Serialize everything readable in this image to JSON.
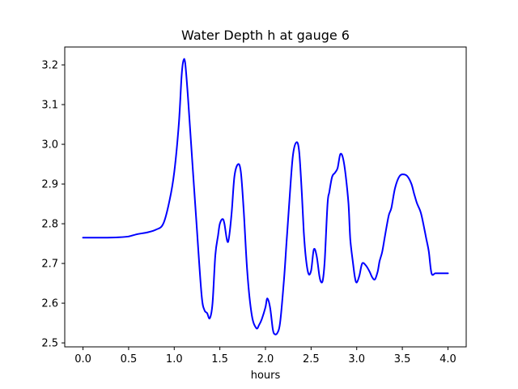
{
  "chart_data": {
    "type": "line",
    "title": "Water Depth h at gauge 6",
    "xlabel": "hours",
    "ylabel": "",
    "xlim": [
      -0.2,
      4.2
    ],
    "ylim": [
      2.49,
      3.245
    ],
    "xticks": [
      0.0,
      0.5,
      1.0,
      1.5,
      2.0,
      2.5,
      3.0,
      3.5,
      4.0
    ],
    "xtick_labels": [
      "0.0",
      "0.5",
      "1.0",
      "1.5",
      "2.0",
      "2.5",
      "3.0",
      "3.5",
      "4.0"
    ],
    "yticks": [
      2.5,
      2.6,
      2.7,
      2.8,
      2.9,
      3.0,
      3.1,
      3.2
    ],
    "ytick_labels": [
      "2.5",
      "2.6",
      "2.7",
      "2.8",
      "2.9",
      "3.0",
      "3.1",
      "3.2"
    ],
    "grid": false,
    "series": [
      {
        "color": "#0000ff",
        "x": [
          0.0,
          0.2,
          0.4,
          0.5,
          0.6,
          0.7,
          0.8,
          0.88,
          0.95,
          1.0,
          1.05,
          1.08,
          1.1,
          1.12,
          1.15,
          1.2,
          1.25,
          1.3,
          1.33,
          1.36,
          1.39,
          1.42,
          1.45,
          1.48,
          1.5,
          1.53,
          1.55,
          1.58,
          1.6,
          1.63,
          1.66,
          1.7,
          1.73,
          1.76,
          1.8,
          1.85,
          1.9,
          1.93,
          1.96,
          2.0,
          2.02,
          2.05,
          2.08,
          2.1,
          2.13,
          2.16,
          2.2,
          2.23,
          2.26,
          2.3,
          2.34,
          2.37,
          2.4,
          2.42,
          2.44,
          2.47,
          2.5,
          2.53,
          2.56,
          2.59,
          2.61,
          2.63,
          2.65,
          2.68,
          2.7,
          2.73,
          2.76,
          2.79,
          2.82,
          2.85,
          2.88,
          2.91,
          2.93,
          2.96,
          2.98,
          3.0,
          3.03,
          3.06,
          3.1,
          3.14,
          3.17,
          3.2,
          3.23,
          3.25,
          3.28,
          3.31,
          3.35,
          3.38,
          3.42,
          3.47,
          3.52,
          3.56,
          3.6,
          3.63,
          3.66,
          3.7,
          3.73,
          3.76,
          3.79,
          3.82,
          3.86,
          3.9,
          3.95,
          4.0
        ],
        "y": [
          2.765,
          2.765,
          2.766,
          2.768,
          2.774,
          2.778,
          2.785,
          2.8,
          2.86,
          2.93,
          3.05,
          3.17,
          3.21,
          3.205,
          3.12,
          2.95,
          2.78,
          2.62,
          2.583,
          2.575,
          2.562,
          2.6,
          2.72,
          2.77,
          2.8,
          2.812,
          2.8,
          2.757,
          2.765,
          2.83,
          2.92,
          2.95,
          2.93,
          2.84,
          2.68,
          2.57,
          2.537,
          2.545,
          2.56,
          2.59,
          2.612,
          2.59,
          2.535,
          2.522,
          2.525,
          2.55,
          2.65,
          2.75,
          2.85,
          2.97,
          3.005,
          2.98,
          2.87,
          2.78,
          2.72,
          2.675,
          2.682,
          2.735,
          2.72,
          2.67,
          2.653,
          2.66,
          2.71,
          2.85,
          2.88,
          2.918,
          2.928,
          2.94,
          2.975,
          2.965,
          2.92,
          2.85,
          2.76,
          2.7,
          2.665,
          2.652,
          2.67,
          2.7,
          2.695,
          2.68,
          2.665,
          2.66,
          2.68,
          2.705,
          2.73,
          2.77,
          2.82,
          2.84,
          2.89,
          2.92,
          2.924,
          2.918,
          2.9,
          2.875,
          2.852,
          2.83,
          2.8,
          2.765,
          2.73,
          2.675,
          2.675,
          2.675,
          2.675,
          2.675
        ]
      }
    ]
  }
}
